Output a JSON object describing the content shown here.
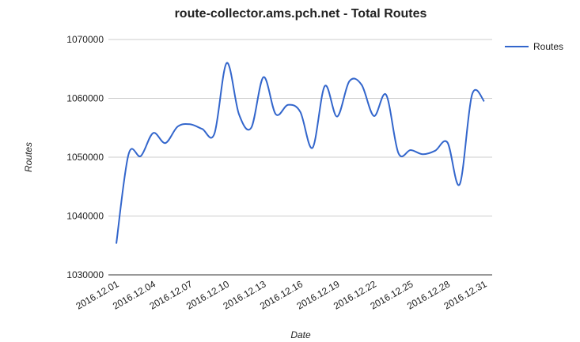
{
  "chart_data": {
    "type": "line",
    "title": "route-collector.ams.pch.net - Total Routes",
    "x_label": "Date",
    "y_label": "Routes",
    "categories": [
      "2016.12.01",
      null,
      null,
      "2016.12.04",
      null,
      null,
      "2016.12.07",
      null,
      null,
      "2016.12.10",
      null,
      null,
      "2016.12.13",
      null,
      null,
      "2016.12.16",
      null,
      null,
      "2016.12.19",
      null,
      null,
      "2016.12.22",
      null,
      null,
      "2016.12.25",
      null,
      null,
      "2016.12.28",
      null,
      null,
      "2016.12.31"
    ],
    "series": [
      {
        "name": "Routes",
        "color": "#3366cc",
        "values": [
          1035300,
          1050500,
          1050200,
          1054100,
          1052400,
          1055200,
          1055600,
          1054800,
          1054000,
          1066000,
          1057300,
          1055000,
          1063600,
          1057300,
          1058900,
          1057700,
          1051600,
          1062100,
          1056900,
          1062900,
          1062300,
          1057000,
          1060600,
          1050700,
          1051200,
          1050500,
          1051100,
          1052500,
          1045400,
          1060600,
          1059500
        ]
      }
    ],
    "ylim": [
      1030000,
      1070000
    ],
    "yticks": [
      1030000,
      1040000,
      1050000,
      1060000,
      1070000
    ],
    "grid": true,
    "smooth": true,
    "legend": "right"
  }
}
